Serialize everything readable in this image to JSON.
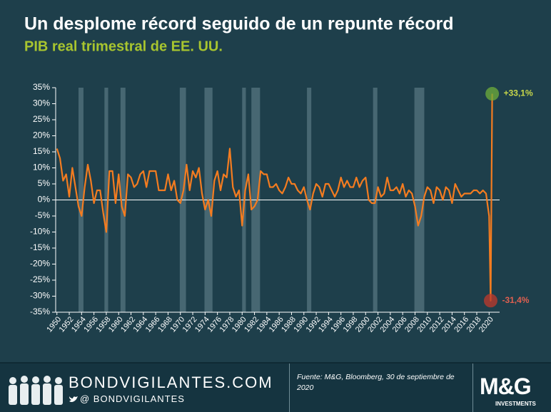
{
  "chart_data": {
    "type": "line",
    "title": "Un desplome récord seguido de un repunte récord",
    "subtitle": "PIB real trimestral de EE. UU.",
    "color": "#f47c20",
    "x": [
      1950,
      1950.5,
      1951,
      1951.5,
      1952,
      1952.5,
      1953,
      1953.5,
      1954,
      1954.5,
      1955,
      1955.5,
      1956,
      1956.5,
      1957,
      1957.5,
      1958,
      1958.5,
      1959,
      1959.5,
      1960,
      1960.5,
      1961,
      1961.5,
      1962,
      1962.5,
      1963,
      1963.5,
      1964,
      1964.5,
      1965,
      1965.5,
      1966,
      1966.5,
      1967,
      1967.5,
      1968,
      1968.5,
      1969,
      1969.5,
      1970,
      1970.5,
      1971,
      1971.5,
      1972,
      1972.5,
      1973,
      1973.5,
      1974,
      1974.5,
      1975,
      1975.5,
      1976,
      1976.5,
      1977,
      1977.5,
      1978,
      1978.5,
      1979,
      1979.5,
      1980,
      1980.5,
      1981,
      1981.5,
      1982,
      1982.5,
      1983,
      1983.5,
      1984,
      1984.5,
      1985,
      1985.5,
      1986,
      1986.5,
      1987,
      1987.5,
      1988,
      1988.5,
      1989,
      1989.5,
      1990,
      1990.5,
      1991,
      1991.5,
      1992,
      1992.5,
      1993,
      1993.5,
      1994,
      1994.5,
      1995,
      1995.5,
      1996,
      1996.5,
      1997,
      1997.5,
      1998,
      1998.5,
      1999,
      1999.5,
      2000,
      2000.5,
      2001,
      2001.5,
      2002,
      2002.5,
      2003,
      2003.5,
      2004,
      2004.5,
      2005,
      2005.5,
      2006,
      2006.5,
      2007,
      2007.5,
      2008,
      2008.5,
      2009,
      2009.5,
      2010,
      2010.5,
      2011,
      2011.5,
      2012,
      2012.5,
      2013,
      2013.5,
      2014,
      2014.5,
      2015,
      2015.5,
      2016,
      2016.5,
      2017,
      2017.5,
      2018,
      2018.5,
      2019,
      2019.5,
      2020,
      2020.25,
      2020.5
    ],
    "values": [
      16,
      13,
      6,
      8,
      1,
      10,
      4,
      -2,
      -5,
      4,
      11,
      6,
      -1,
      3,
      3,
      -4,
      -10,
      9,
      9,
      -1,
      8,
      -2,
      -5,
      8,
      7,
      4,
      5,
      8,
      9,
      4,
      9,
      9,
      9,
      3,
      3,
      3,
      8,
      3,
      6,
      0,
      -1,
      3,
      11,
      3,
      9,
      7,
      10,
      2,
      -3,
      0,
      -5,
      6,
      9,
      3,
      8,
      7,
      16,
      4,
      1,
      3,
      -8,
      3,
      8,
      -3,
      -2,
      0,
      9,
      8,
      8,
      4,
      4,
      5,
      3,
      2,
      4,
      7,
      5,
      5,
      3,
      2,
      4,
      0,
      -3,
      2,
      5,
      4,
      1,
      5,
      5,
      3,
      1,
      3,
      7,
      4,
      6,
      4,
      4,
      7,
      4,
      6,
      7,
      0,
      -1,
      -1,
      4,
      1,
      2,
      7,
      3,
      3,
      4,
      2,
      5,
      1,
      3,
      2,
      -2,
      -8,
      -5,
      1,
      4,
      3,
      -1,
      4,
      3,
      0,
      4,
      3,
      -1,
      5,
      3,
      1,
      2,
      2,
      2,
      3,
      3,
      2,
      3,
      2,
      -5,
      -31.4,
      33.1
    ],
    "recessions": [
      [
        1953.5,
        1954.3
      ],
      [
        1957.7,
        1958.3
      ],
      [
        1960.3,
        1961.1
      ],
      [
        1969.9,
        1970.9
      ],
      [
        1973.9,
        1975.2
      ],
      [
        1980,
        1980.6
      ],
      [
        1981.5,
        1982.9
      ],
      [
        1990.5,
        1991.2
      ],
      [
        2001.2,
        2001.9
      ],
      [
        2007.9,
        2009.5
      ]
    ],
    "xlim": [
      1949.8,
      2021.7
    ],
    "ylim": [
      -35,
      35
    ],
    "xticks": [
      1950,
      1952,
      1954,
      1956,
      1958,
      1960,
      1962,
      1964,
      1966,
      1968,
      1970,
      1972,
      1974,
      1976,
      1978,
      1980,
      1982,
      1984,
      1986,
      1988,
      1990,
      1992,
      1994,
      1996,
      1998,
      2000,
      2002,
      2004,
      2006,
      2008,
      2010,
      2012,
      2014,
      2016,
      2018,
      2020
    ],
    "yticks": [
      {
        "value": 35,
        "label": "35%"
      },
      {
        "value": 30,
        "label": "30%"
      },
      {
        "value": 25,
        "label": "25%"
      },
      {
        "value": 20,
        "label": "20%"
      },
      {
        "value": 15,
        "label": "15%"
      },
      {
        "value": 10,
        "label": "10%"
      },
      {
        "value": 5,
        "label": "5%"
      },
      {
        "value": 0,
        "label": "0%"
      },
      {
        "value": -5,
        "label": "-5%"
      },
      {
        "value": -10,
        "label": "-10%"
      },
      {
        "value": -15,
        "label": "-15%"
      },
      {
        "value": -20,
        "label": "-20%"
      },
      {
        "value": -25,
        "label": "-25%"
      },
      {
        "value": -30,
        "label": "-30%"
      },
      {
        "value": -35,
        "label": "-35%"
      }
    ],
    "annotations": [
      {
        "label": "+33,1%",
        "x": 2020.5,
        "y": 33.1,
        "color": "#6fae3a",
        "text_color": "#c8d84a"
      },
      {
        "label": "-31,4%",
        "x": 2020.25,
        "y": -31.4,
        "color": "#c0392b",
        "text_color": "#e06050"
      }
    ]
  },
  "footer": {
    "brand": "BONDVIGILANTES.COM",
    "handle": "@ BONDVIGILANTES",
    "source": "Fuente: M&G, Bloomberg, 30 de septiembre de 2020",
    "logo": "M&G",
    "logo_sub": "INVESTMENTS"
  }
}
